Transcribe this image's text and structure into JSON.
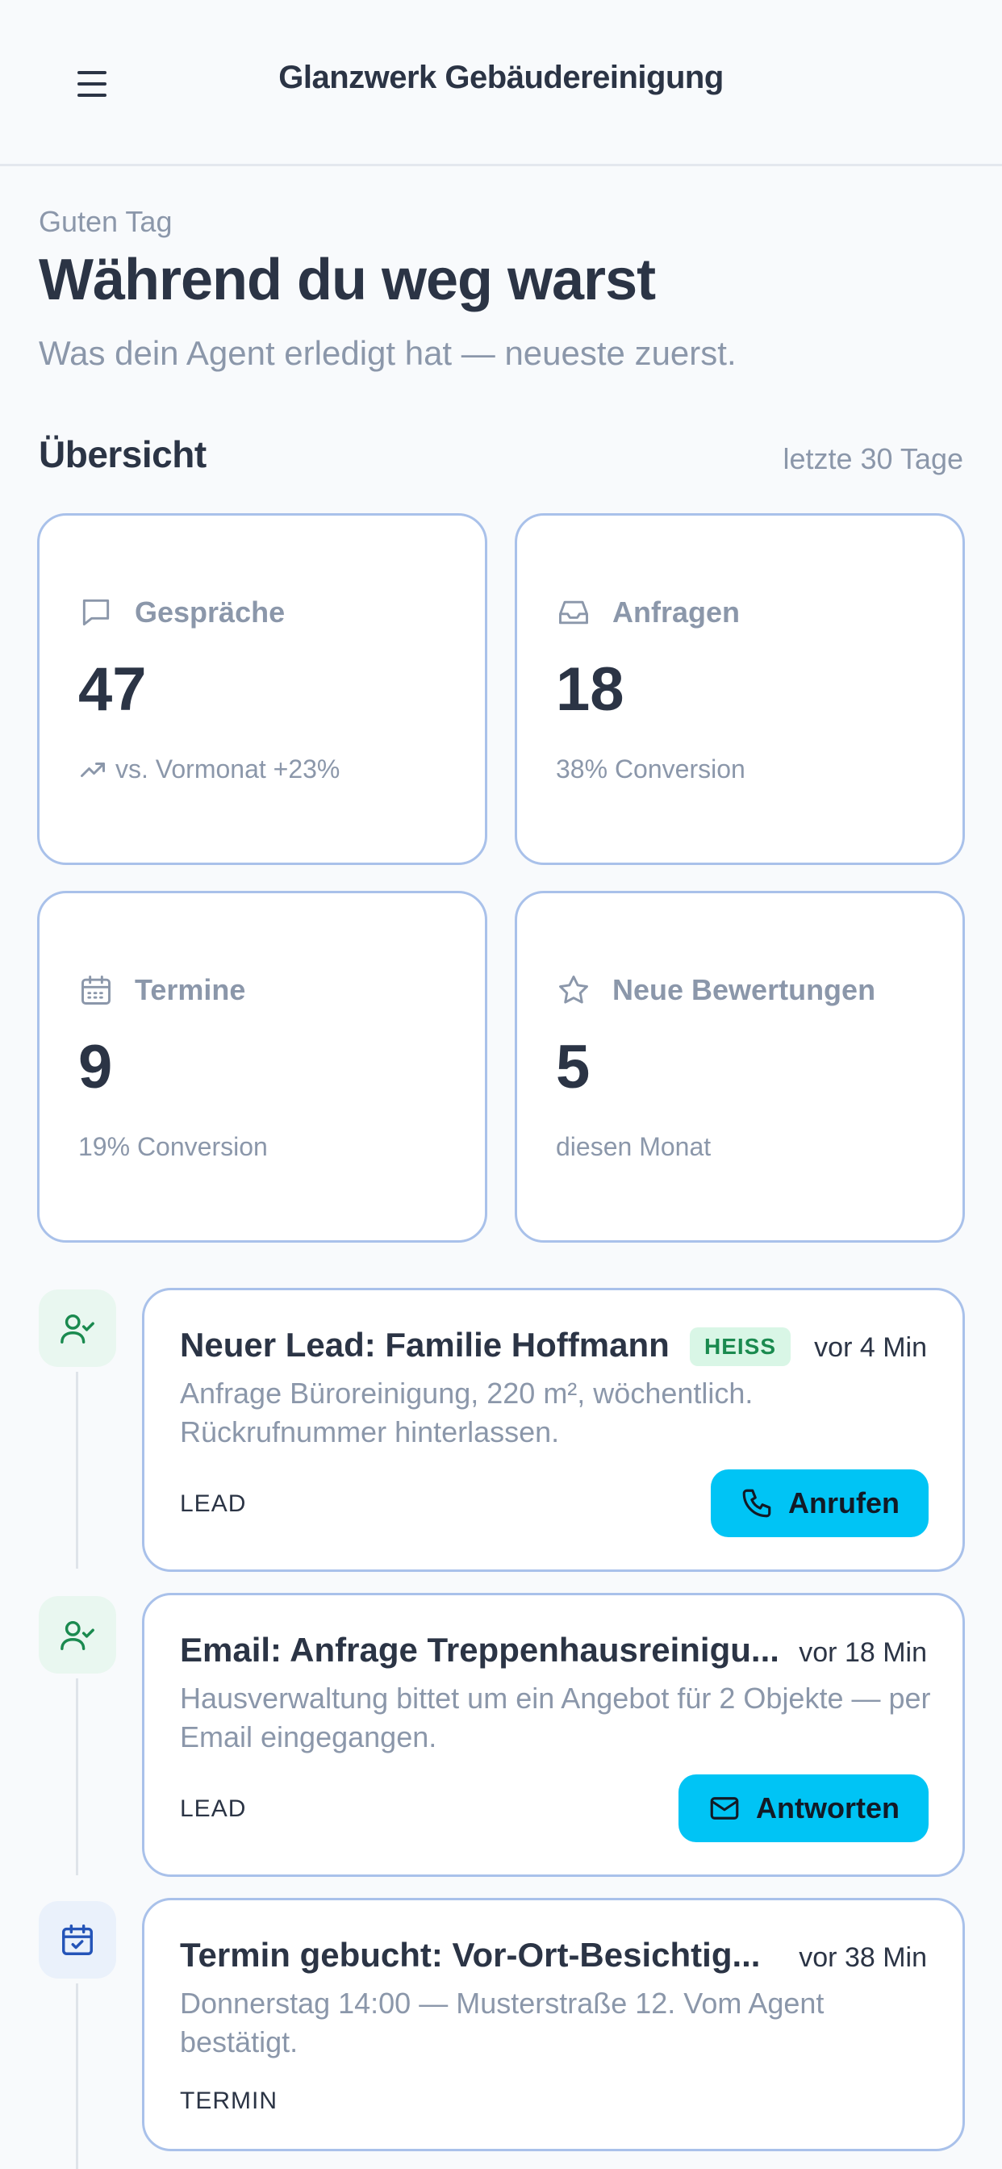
{
  "header": {
    "title": "Glanzwerk Gebäudereinigung",
    "menu_icon": "hamburger-menu-icon"
  },
  "intro": {
    "greeting": "Guten Tag",
    "headline": "Während du weg warst",
    "subline": "Was dein Agent erledigt hat — neueste zuerst."
  },
  "overview": {
    "title": "Übersicht",
    "period": "letzte 30 Tage",
    "stats": [
      {
        "icon": "chat-bubble-icon",
        "label": "Gespräche",
        "value": "47",
        "sub": "vs. Vormonat +23%",
        "sub_icon": "trending-up-icon"
      },
      {
        "icon": "inbox-icon",
        "label": "Anfragen",
        "value": "18",
        "sub": "38% Conversion"
      },
      {
        "icon": "calendar-icon",
        "label": "Termine",
        "value": "9",
        "sub": "19% Conversion"
      },
      {
        "icon": "star-icon",
        "label": "Neue Bewertungen",
        "value": "5",
        "sub": "diesen Monat"
      }
    ]
  },
  "events": [
    {
      "icon": "user-check-icon",
      "title": "Neuer Lead: Familie Hoffmann",
      "badge": "HEISS",
      "time": "vor 4 Min",
      "desc": "Anfrage Büroreinigung, 220 m², wöchentlich. Rückrufnummer hinterlassen.",
      "kind": "LEAD",
      "action": "Anrufen",
      "action_icon": "phone-icon"
    },
    {
      "icon": "user-check-icon",
      "title": "Email: Anfrage Treppenhausreinigu...",
      "time": "vor 18 Min",
      "desc": "Hausverwaltung bittet um ein Angebot für 2 Objekte — per Email eingegangen.",
      "kind": "LEAD",
      "action": "Antworten",
      "action_icon": "mail-icon"
    },
    {
      "icon": "calendar-check-icon",
      "title": "Termin gebucht: Vor-Ort-Besichtig...",
      "time": "vor 38 Min",
      "desc": "Donnerstag 14:00 — Musterstraße 12. Vom Agent bestätigt.",
      "kind": "TERMIN"
    }
  ],
  "colors": {
    "accent": "#00c4f5",
    "card_border": "#a9c1ea",
    "hot_badge_bg": "#d9f6e6",
    "hot_badge_text": "#1a8a4f"
  }
}
